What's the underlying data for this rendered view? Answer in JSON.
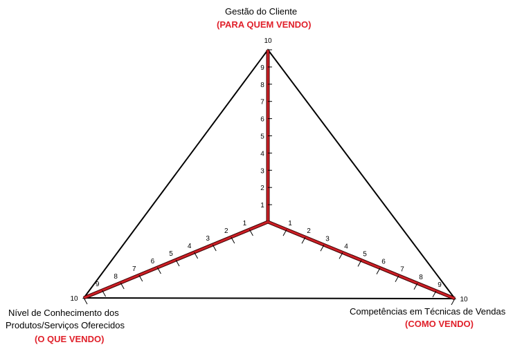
{
  "axes": [
    {
      "id": "top",
      "title": "Gestão do Cliente",
      "subtitle": "(PARA QUEM VENDO)"
    },
    {
      "id": "right",
      "title": "Competências em Técnicas de Vendas",
      "subtitle": "(COMO VENDO)"
    },
    {
      "id": "left",
      "title_line1": "Nível de Conhecimento dos",
      "title_line2": "Produtos/Serviços Oferecidos",
      "subtitle": "(O QUE VENDO)"
    }
  ],
  "scale": {
    "min": 1,
    "max": 10,
    "ticks": [
      "1",
      "2",
      "3",
      "4",
      "5",
      "6",
      "7",
      "8",
      "9",
      "10"
    ]
  },
  "colors": {
    "outline": "#000000",
    "axis": "#cc1f26"
  }
}
